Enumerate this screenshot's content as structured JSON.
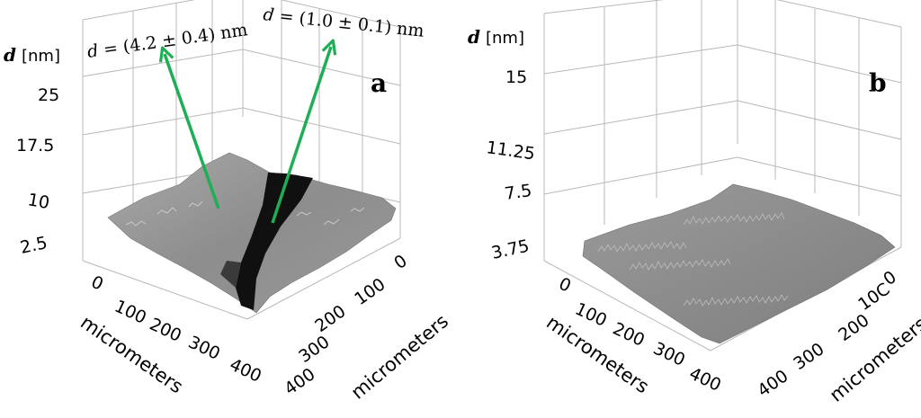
{
  "chart_data": [
    {
      "type": "surface",
      "panel": "a",
      "zlabel": "d",
      "zunit": "[nm]",
      "zticks": [
        "25",
        "17.5",
        "10",
        "2.5"
      ],
      "xticks": [
        "0",
        "100",
        "200",
        "300",
        "400"
      ],
      "yticks": [
        "0",
        "100",
        "200",
        "300",
        "400"
      ],
      "xlabel": "micrometers",
      "ylabel": "micrometers",
      "annotations": [
        {
          "var": "d",
          "text": " = (4.2 ± 0.4) nm"
        },
        {
          "var": "d",
          "text": " = (1.0 ± 0.1) nm"
        }
      ],
      "arrow_color": "#1fae55"
    },
    {
      "type": "surface",
      "panel": "b",
      "zlabel": "d",
      "zunit": "[nm]",
      "zticks": [
        "15",
        "11.25",
        "7.5",
        "3.75"
      ],
      "xticks": [
        "0",
        "100",
        "200",
        "300",
        "400"
      ],
      "yticks": [
        "0",
        "10C",
        "200",
        "300",
        "400"
      ],
      "xlabel": "micrometers",
      "ylabel": "micrometers"
    }
  ]
}
